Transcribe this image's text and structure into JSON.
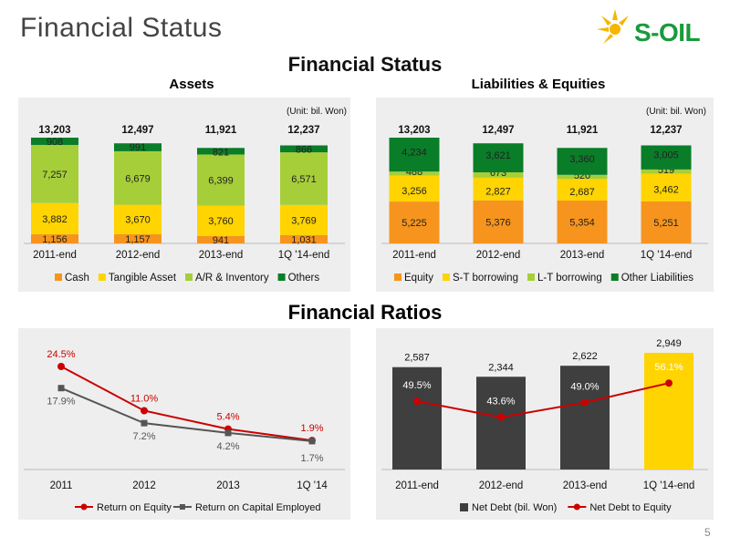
{
  "header": {
    "title": "Financial Status",
    "logo_text": "S-OIL"
  },
  "main_title": "Financial Status",
  "section_assets": "Assets",
  "section_liabilities": "Liabilities & Equities",
  "section_ratios": "Financial Ratios",
  "page_number": "5",
  "colors": {
    "cash": "#f7941d",
    "tangible": "#ffd400",
    "ar": "#a6ce39",
    "others": "#0a7d28",
    "red": "#cc0000",
    "gray": "#555555",
    "netdebt": "#3f3f3f",
    "highlight": "#ffd400"
  },
  "chart_data": [
    {
      "type": "bar",
      "stacked": true,
      "unit": "(Unit: bil. Won)",
      "categories": [
        "2011-end",
        "2012-end",
        "2013-end",
        "1Q '14-end"
      ],
      "totals": [
        "13,203",
        "12,497",
        "11,921",
        "12,237"
      ],
      "series": [
        {
          "name": "Cash",
          "values": [
            1156,
            1157,
            941,
            1031
          ],
          "labels": [
            "1,156",
            "1,157",
            "941",
            "1,031"
          ]
        },
        {
          "name": "Tangible Asset",
          "values": [
            3882,
            3670,
            3760,
            3769
          ],
          "labels": [
            "3,882",
            "3,670",
            "3,760",
            "3,769"
          ]
        },
        {
          "name": "A/R & Inventory",
          "values": [
            7257,
            6679,
            6399,
            6571
          ],
          "labels": [
            "7,257",
            "6,679",
            "6,399",
            "6,571"
          ]
        },
        {
          "name": "Others",
          "values": [
            908,
            991,
            821,
            866
          ],
          "labels": [
            "908",
            "991",
            "821",
            "866"
          ]
        }
      ]
    },
    {
      "type": "bar",
      "stacked": true,
      "unit": "(Unit: bil. Won)",
      "categories": [
        "2011-end",
        "2012-end",
        "2013-end",
        "1Q '14-end"
      ],
      "totals": [
        "13,203",
        "12,497",
        "11,921",
        "12,237"
      ],
      "series": [
        {
          "name": "Equity",
          "values": [
            5225,
            5376,
            5354,
            5251
          ],
          "labels": [
            "5,225",
            "5,376",
            "5,354",
            "5,251"
          ]
        },
        {
          "name": "S-T borrowing",
          "values": [
            3256,
            2827,
            2687,
            3462
          ],
          "labels": [
            "3,256",
            "2,827",
            "2,687",
            "3,462"
          ]
        },
        {
          "name": "L-T borrowing",
          "values": [
            488,
            673,
            520,
            519
          ],
          "labels": [
            "488",
            "673",
            "520",
            "519"
          ]
        },
        {
          "name": "Other Liabilities",
          "values": [
            4234,
            3621,
            3360,
            3005
          ],
          "labels": [
            "4,234",
            "3,621",
            "3,360",
            "3,005"
          ]
        }
      ]
    },
    {
      "type": "line",
      "categories": [
        "2011",
        "2012",
        "2013",
        "1Q '14"
      ],
      "series": [
        {
          "name": "Return on Equity",
          "values": [
            24.5,
            11.0,
            5.4,
            1.9
          ],
          "labels": [
            "24.5%",
            "11.0%",
            "5.4%",
            "1.9%"
          ]
        },
        {
          "name": "Return on Capital Employed",
          "values": [
            17.9,
            7.2,
            4.2,
            1.7
          ],
          "labels": [
            "17.9%",
            "7.2%",
            "4.2%",
            "1.7%"
          ]
        }
      ]
    },
    {
      "type": "bar",
      "categories": [
        "2011-end",
        "2012-end",
        "2013-end",
        "1Q '14-end"
      ],
      "series": [
        {
          "name": "Net Debt (bil. Won)",
          "values": [
            2587,
            2344,
            2622,
            2949
          ],
          "labels": [
            "2,587",
            "2,344",
            "2,622",
            "2,949"
          ]
        },
        {
          "name": "Net Debt to Equity",
          "values": [
            49.5,
            43.6,
            49.0,
            56.1
          ],
          "labels": [
            "49.5%",
            "43.6%",
            "49.0%",
            "56.1%"
          ]
        }
      ]
    }
  ]
}
